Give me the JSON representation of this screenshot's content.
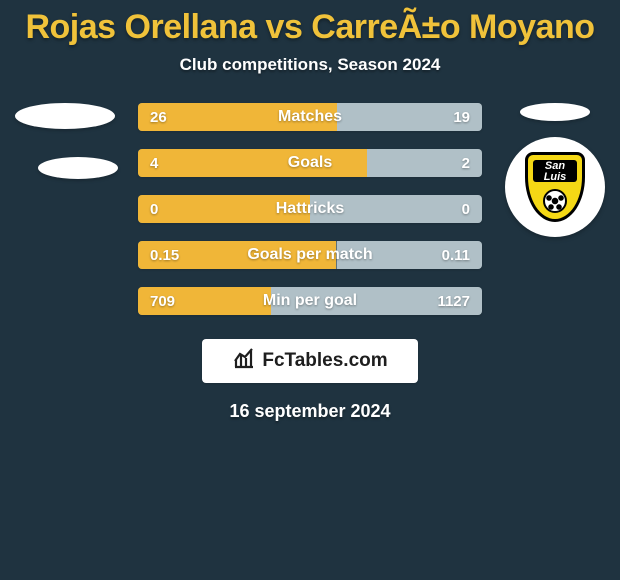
{
  "colors": {
    "page_bg": "#1f3340",
    "title": "#f0c23a",
    "subtitle": "#ffffff",
    "bar_left_fill": "#f0b638",
    "bar_right_fill": "#b0c0c7",
    "bar_track": "#5e717a",
    "bar_text": "#ffffff",
    "bar_value_text": "#ffffff",
    "footer_bg": "#ffffff",
    "footer_text": "#1e1e1e",
    "ellipse": "#ffffff",
    "shield_yellow": "#f5d815"
  },
  "typography": {
    "title_fontsize": 34,
    "subtitle_fontsize": 17,
    "bar_label_fontsize": 16,
    "bar_value_fontsize": 15,
    "date_fontsize": 18,
    "footer_fontsize": 19
  },
  "title": "Rojas Orellana vs CarreÃ±o Moyano",
  "subtitle": "Club competitions, Season 2024",
  "date": "16 september 2024",
  "footer_brand": "FcTables.com",
  "badges": {
    "left": {
      "type": "ellipse-pair"
    },
    "right": {
      "type": "san-luis",
      "text_line1": "San",
      "text_line2": "Luis"
    }
  },
  "stats": [
    {
      "label": "Matches",
      "left_value": "26",
      "right_value": "19",
      "left_raw": 26,
      "right_raw": 19,
      "left_pct": 57.8,
      "right_pct": 42.2
    },
    {
      "label": "Goals",
      "left_value": "4",
      "right_value": "2",
      "left_raw": 4,
      "right_raw": 2,
      "left_pct": 66.7,
      "right_pct": 33.3
    },
    {
      "label": "Hattricks",
      "left_value": "0",
      "right_value": "0",
      "left_raw": 0,
      "right_raw": 0,
      "left_pct": 50,
      "right_pct": 50
    },
    {
      "label": "Goals per match",
      "left_value": "0.15",
      "right_value": "0.11",
      "left_raw": 0.15,
      "right_raw": 0.11,
      "left_pct": 57.7,
      "right_pct": 42.3
    },
    {
      "label": "Min per goal",
      "left_value": "709",
      "right_value": "1127",
      "left_raw": 709,
      "right_raw": 1127,
      "left_pct": 38.6,
      "right_pct": 61.4
    }
  ]
}
